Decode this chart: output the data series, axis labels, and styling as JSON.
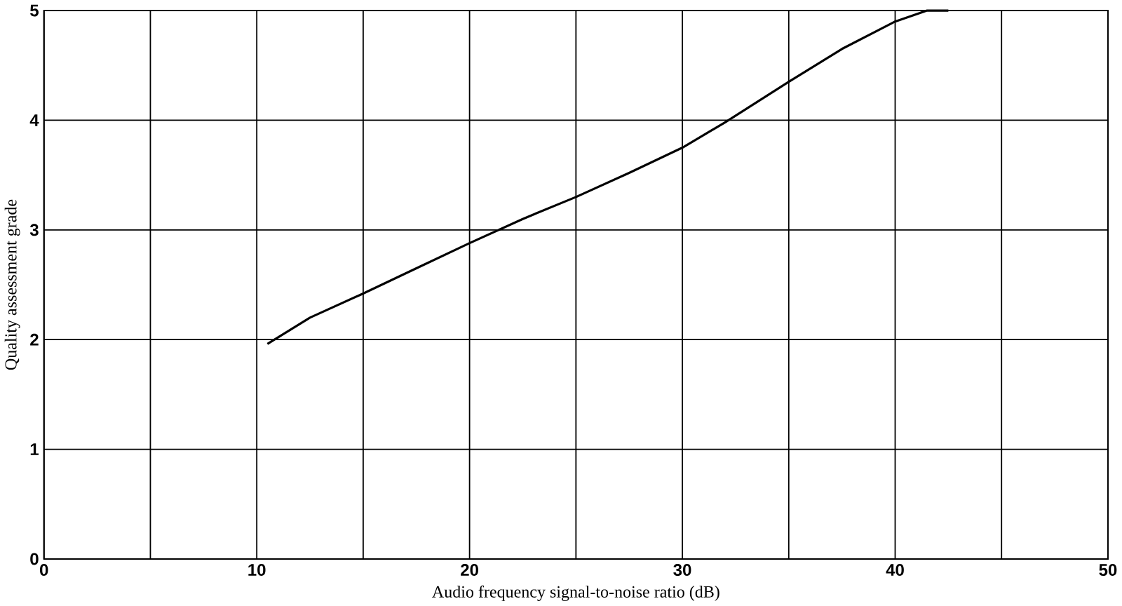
{
  "chart_data": {
    "type": "line",
    "xlabel": "Audio frequency signal-to-noise ratio (dB)",
    "ylabel": "Quality assessment grade",
    "x": [
      10.5,
      12.5,
      15,
      17.5,
      20,
      22.5,
      25,
      27.5,
      30,
      32,
      35,
      37.5,
      40,
      41.5,
      42.5
    ],
    "series": [
      {
        "color": "#000000",
        "values": [
          1.96,
          2.2,
          2.42,
          2.65,
          2.88,
          3.1,
          3.3,
          3.52,
          3.75,
          3.98,
          4.35,
          4.65,
          4.9,
          5.0,
          5.0
        ]
      }
    ],
    "xlim": [
      0,
      50
    ],
    "ylim": [
      0,
      5
    ],
    "xticks": [
      0,
      10,
      20,
      30,
      40,
      50
    ],
    "yticks": [
      0,
      1,
      2,
      3,
      4,
      5
    ],
    "grid": true,
    "line_style": "solid"
  }
}
